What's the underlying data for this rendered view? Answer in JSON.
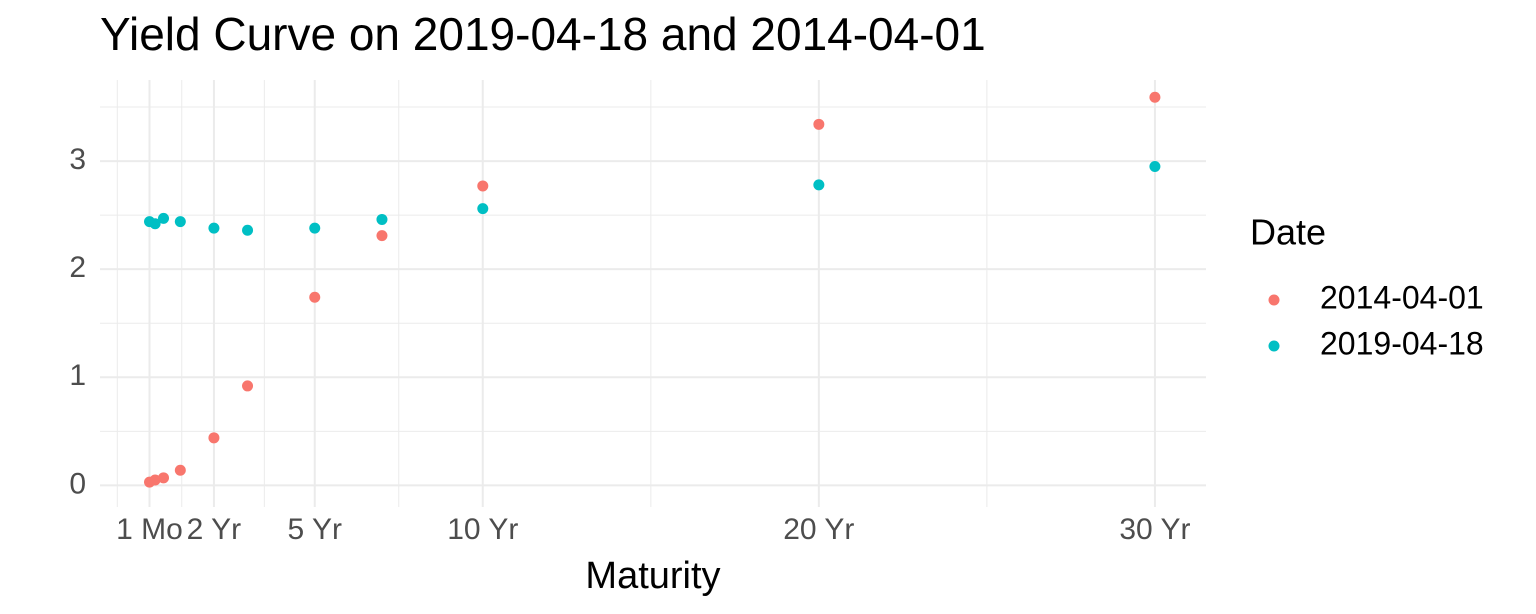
{
  "chart_data": {
    "type": "scatter",
    "title": "Yield Curve on 2019-04-18 and 2014-04-01",
    "x_label": "Maturity",
    "legend_title": "Date",
    "legend_position": "right",
    "grid": true,
    "x": [
      0.0833,
      0.25,
      0.5,
      1,
      2,
      3,
      5,
      7,
      10,
      20,
      30
    ],
    "series": [
      {
        "name": "2014-04-01",
        "color": "#F8766D",
        "values": [
          0.03,
          0.05,
          0.07,
          0.14,
          0.44,
          0.92,
          1.74,
          2.31,
          2.77,
          3.34,
          3.59
        ]
      },
      {
        "name": "2019-04-18",
        "color": "#00BFC4",
        "values": [
          2.44,
          2.42,
          2.47,
          2.44,
          2.38,
          2.36,
          2.38,
          2.46,
          2.56,
          2.78,
          2.95
        ]
      }
    ],
    "xlim": [
      -1.39,
      31.52
    ],
    "xticks": [
      {
        "value": 0.0833,
        "label": "1 Mo"
      },
      {
        "value": 2,
        "label": "2 Yr"
      },
      {
        "value": 5,
        "label": "5 Yr"
      },
      {
        "value": 10,
        "label": "10 Yr"
      },
      {
        "value": 20,
        "label": "20 Yr"
      },
      {
        "value": 30,
        "label": "30 Yr"
      }
    ],
    "ylim": [
      -0.2,
      3.75
    ],
    "yticks": [
      0,
      1,
      2,
      3
    ]
  }
}
